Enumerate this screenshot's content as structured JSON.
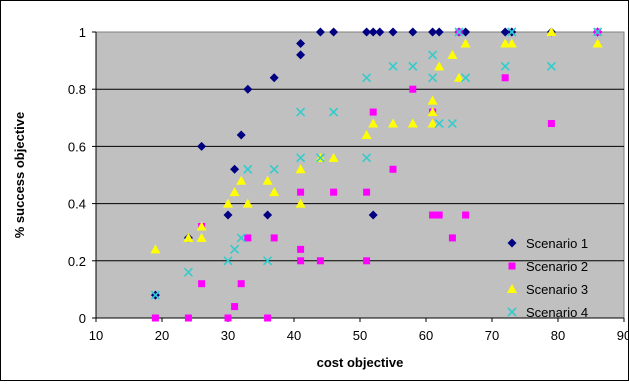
{
  "chart_data": {
    "type": "scatter",
    "xlabel": "cost objective",
    "ylabel": "% success objective",
    "xlim": [
      10,
      90
    ],
    "ylim": [
      0,
      1
    ],
    "x_ticks": [
      "10",
      "20",
      "30",
      "40",
      "50",
      "60",
      "70",
      "80",
      "90"
    ],
    "y_ticks": [
      "0",
      "0.2",
      "0.4",
      "0.6",
      "0.8",
      "1"
    ],
    "plot_background": "#c0c0c0",
    "grid": "horizontal",
    "legend_position": "right",
    "series": [
      {
        "name": "Scenario 1",
        "marker": "diamond",
        "color": "#000080",
        "points": [
          [
            19,
            0.08
          ],
          [
            24,
            0.28
          ],
          [
            26,
            0.6
          ],
          [
            30,
            0.36
          ],
          [
            31,
            0.52
          ],
          [
            32,
            0.64
          ],
          [
            33,
            0.8
          ],
          [
            36,
            0.36
          ],
          [
            37,
            0.84
          ],
          [
            41,
            0.92
          ],
          [
            41,
            0.96
          ],
          [
            44,
            1
          ],
          [
            46,
            1
          ],
          [
            51,
            1
          ],
          [
            52,
            1
          ],
          [
            52,
            0.36
          ],
          [
            53,
            1
          ],
          [
            55,
            1
          ],
          [
            58,
            1
          ],
          [
            61,
            1
          ],
          [
            62,
            1
          ],
          [
            65,
            1
          ],
          [
            66,
            1
          ],
          [
            72,
            1
          ],
          [
            73,
            1
          ],
          [
            79,
            1
          ],
          [
            86,
            1
          ]
        ]
      },
      {
        "name": "Scenario 2",
        "marker": "square",
        "color": "#ff00ff",
        "points": [
          [
            19,
            0
          ],
          [
            24,
            0
          ],
          [
            26,
            0.12
          ],
          [
            26,
            0.32
          ],
          [
            30,
            0
          ],
          [
            31,
            0.04
          ],
          [
            32,
            0.12
          ],
          [
            33,
            0.28
          ],
          [
            36,
            0
          ],
          [
            37,
            0.28
          ],
          [
            41,
            0.44
          ],
          [
            41,
            0.24
          ],
          [
            41,
            0.2
          ],
          [
            44,
            0.2
          ],
          [
            46,
            0.44
          ],
          [
            51,
            0.44
          ],
          [
            51,
            0.2
          ],
          [
            52,
            0.72
          ],
          [
            55,
            0.52
          ],
          [
            58,
            0.8
          ],
          [
            61,
            0.72
          ],
          [
            61,
            0.36
          ],
          [
            62,
            0.36
          ],
          [
            64,
            0.28
          ],
          [
            65,
            1
          ],
          [
            66,
            0.36
          ],
          [
            72,
            0.84
          ],
          [
            79,
            0.68
          ],
          [
            86,
            1
          ]
        ]
      },
      {
        "name": "Scenario 3",
        "marker": "triangle",
        "color": "#ffff00",
        "points": [
          [
            19,
            0.24
          ],
          [
            24,
            0.28
          ],
          [
            26,
            0.32
          ],
          [
            26,
            0.28
          ],
          [
            30,
            0.4
          ],
          [
            31,
            0.44
          ],
          [
            32,
            0.48
          ],
          [
            33,
            0.4
          ],
          [
            36,
            0.48
          ],
          [
            37,
            0.44
          ],
          [
            41,
            0.52
          ],
          [
            41,
            0.4
          ],
          [
            44,
            0.56
          ],
          [
            46,
            0.56
          ],
          [
            51,
            0.64
          ],
          [
            52,
            0.68
          ],
          [
            55,
            0.68
          ],
          [
            58,
            0.68
          ],
          [
            61,
            0.76
          ],
          [
            61,
            0.72
          ],
          [
            61,
            0.68
          ],
          [
            62,
            0.88
          ],
          [
            64,
            0.92
          ],
          [
            65,
            0.84
          ],
          [
            66,
            0.96
          ],
          [
            72,
            0.96
          ],
          [
            73,
            0.96
          ],
          [
            79,
            1
          ],
          [
            86,
            0.96
          ]
        ]
      },
      {
        "name": "Scenario 4",
        "marker": "x",
        "color": "#33cccc",
        "points": [
          [
            19,
            0.08
          ],
          [
            24,
            0.16
          ],
          [
            30,
            0.2
          ],
          [
            31,
            0.24
          ],
          [
            32,
            0.28
          ],
          [
            33,
            0.52
          ],
          [
            36,
            0.2
          ],
          [
            37,
            0.52
          ],
          [
            41,
            0.72
          ],
          [
            41,
            0.56
          ],
          [
            44,
            0.56
          ],
          [
            46,
            0.72
          ],
          [
            51,
            0.84
          ],
          [
            51,
            0.56
          ],
          [
            55,
            0.88
          ],
          [
            58,
            0.88
          ],
          [
            61,
            0.92
          ],
          [
            61,
            0.84
          ],
          [
            62,
            0.68
          ],
          [
            64,
            0.68
          ],
          [
            65,
            1
          ],
          [
            66,
            0.84
          ],
          [
            72,
            0.88
          ],
          [
            73,
            1
          ],
          [
            79,
            0.88
          ],
          [
            86,
            1
          ]
        ]
      }
    ]
  }
}
